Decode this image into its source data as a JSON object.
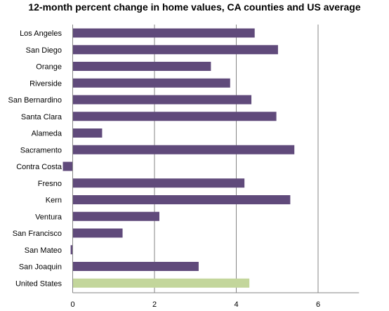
{
  "chart_data": {
    "type": "bar",
    "orientation": "horizontal",
    "title": "12-month percent change in home values, CA counties and US average",
    "xlabel": "",
    "ylabel": "",
    "xlim": [
      0,
      7
    ],
    "ticks": [
      0,
      2,
      4,
      6
    ],
    "grid": "vertical",
    "categories": [
      "Los Angeles",
      "San Diego",
      "Orange",
      "Riverside",
      "San Bernardino",
      "Santa Clara",
      "Alameda",
      "Sacramento",
      "Contra Costa",
      "Fresno",
      "Kern",
      "Ventura",
      "San Francisco",
      "San Mateo",
      "San Joaquin",
      "United States"
    ],
    "values": [
      4.45,
      5.02,
      3.38,
      3.85,
      4.37,
      4.98,
      0.72,
      5.42,
      -0.24,
      4.2,
      5.32,
      2.12,
      1.22,
      -0.05,
      3.08,
      4.32
    ],
    "colors": {
      "bar": "#604a7b",
      "highlight": "#c3d69b",
      "grid": "#868686",
      "axis": "#868686"
    },
    "highlight_category": "United States"
  }
}
